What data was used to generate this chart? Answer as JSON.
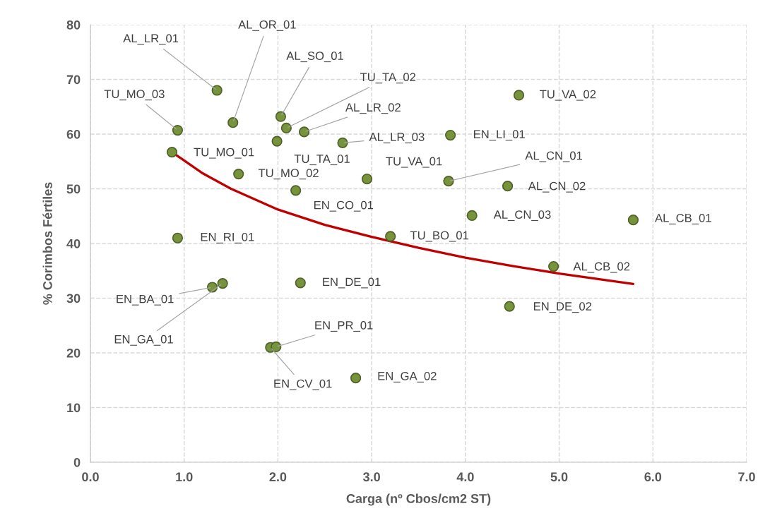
{
  "chart_data": {
    "type": "scatter",
    "xlabel": "Carga (nº Cbos/cm2 ST)",
    "ylabel": "% Corimbos Fértiles",
    "xlim": [
      0,
      7
    ],
    "ylim": [
      0,
      80
    ],
    "xticks": [
      {
        "value": 0,
        "label": "0.0"
      },
      {
        "value": 1,
        "label": "1.0"
      },
      {
        "value": 2,
        "label": "2.0"
      },
      {
        "value": 3,
        "label": "3.0"
      },
      {
        "value": 4,
        "label": "4.0"
      },
      {
        "value": 5,
        "label": "5.0"
      },
      {
        "value": 6,
        "label": "6.0"
      },
      {
        "value": 7,
        "label": "7.0"
      }
    ],
    "yticks": [
      0,
      10,
      20,
      30,
      40,
      50,
      60,
      70,
      80
    ],
    "grid": true,
    "series": [
      {
        "marker": "circle",
        "color": "#77933c",
        "x": [
          1.35,
          1.52,
          2.03,
          2.09,
          2.28,
          0.93,
          1.99,
          2.69,
          0.87,
          1.58,
          2.95,
          2.19,
          0.93,
          3.2,
          4.57,
          3.84,
          3.82,
          4.45,
          4.07,
          5.79,
          4.94,
          4.47,
          1.3,
          1.41,
          2.24,
          1.92,
          1.98,
          2.83
        ],
        "values": [
          68.0,
          62.1,
          63.2,
          61.1,
          60.4,
          60.7,
          58.7,
          58.4,
          56.7,
          52.7,
          51.8,
          49.7,
          41.0,
          41.3,
          67.1,
          59.8,
          51.4,
          50.5,
          45.1,
          44.3,
          35.8,
          28.5,
          32.0,
          32.7,
          32.8,
          21.0,
          21.1,
          15.4
        ]
      },
      {
        "type": "line",
        "marker": "none",
        "color": "#c00000",
        "x": [
          0.87,
          1.2,
          1.5,
          2,
          2.5,
          3,
          3.5,
          4,
          4.5,
          5,
          5.79
        ],
        "values": [
          56.7,
          52.8,
          50.0,
          46.2,
          43.4,
          41.2,
          39.2,
          37.4,
          35.9,
          34.5,
          32.6
        ]
      }
    ],
    "annotations": [
      {
        "text": "AL_LR_01",
        "x": 1.35,
        "y": 68.0
      },
      {
        "text": "AL_OR_01",
        "x": 1.52,
        "y": 62.1
      },
      {
        "text": "AL_SO_01",
        "x": 2.03,
        "y": 63.2
      },
      {
        "text": "TU_TA_02",
        "x": 2.09,
        "y": 61.1
      },
      {
        "text": "AL_LR_02",
        "x": 2.28,
        "y": 60.4
      },
      {
        "text": "TU_MO_03",
        "x": 0.93,
        "y": 60.7
      },
      {
        "text": "TU_TA_01",
        "x": 1.99,
        "y": 58.7
      },
      {
        "text": "AL_LR_03",
        "x": 2.69,
        "y": 58.4
      },
      {
        "text": "TU_MO_01",
        "x": 0.87,
        "y": 56.7
      },
      {
        "text": "TU_MO_02",
        "x": 1.58,
        "y": 52.7
      },
      {
        "text": "TU_VA_01",
        "x": 2.95,
        "y": 51.8
      },
      {
        "text": "EN_CO_01",
        "x": 2.19,
        "y": 49.7
      },
      {
        "text": "EN_RI_01",
        "x": 0.93,
        "y": 41.0
      },
      {
        "text": "TU_BO_01",
        "x": 3.2,
        "y": 41.3
      },
      {
        "text": "TU_VA_02",
        "x": 4.57,
        "y": 67.1
      },
      {
        "text": "EN_LI_01",
        "x": 3.84,
        "y": 59.8
      },
      {
        "text": "AL_CN_01",
        "x": 3.82,
        "y": 51.4
      },
      {
        "text": "AL_CN_02",
        "x": 4.45,
        "y": 50.5
      },
      {
        "text": "AL_CN_03",
        "x": 4.07,
        "y": 45.1
      },
      {
        "text": "AL_CB_01",
        "x": 5.79,
        "y": 44.3
      },
      {
        "text": "AL_CB_02",
        "x": 4.94,
        "y": 35.8
      },
      {
        "text": "EN_DE_02",
        "x": 4.47,
        "y": 28.5
      },
      {
        "text": "EN_BA_01",
        "x": 1.3,
        "y": 32.0
      },
      {
        "text": "EN_GA_01",
        "x": 1.41,
        "y": 32.7
      },
      {
        "text": "EN_DE_01",
        "x": 2.24,
        "y": 32.8
      },
      {
        "text": "EN_CV_01",
        "x": 1.92,
        "y": 21.0
      },
      {
        "text": "EN_PR_01",
        "x": 1.98,
        "y": 21.1
      },
      {
        "text": "EN_GA_02",
        "x": 2.83,
        "y": 15.4
      }
    ]
  }
}
